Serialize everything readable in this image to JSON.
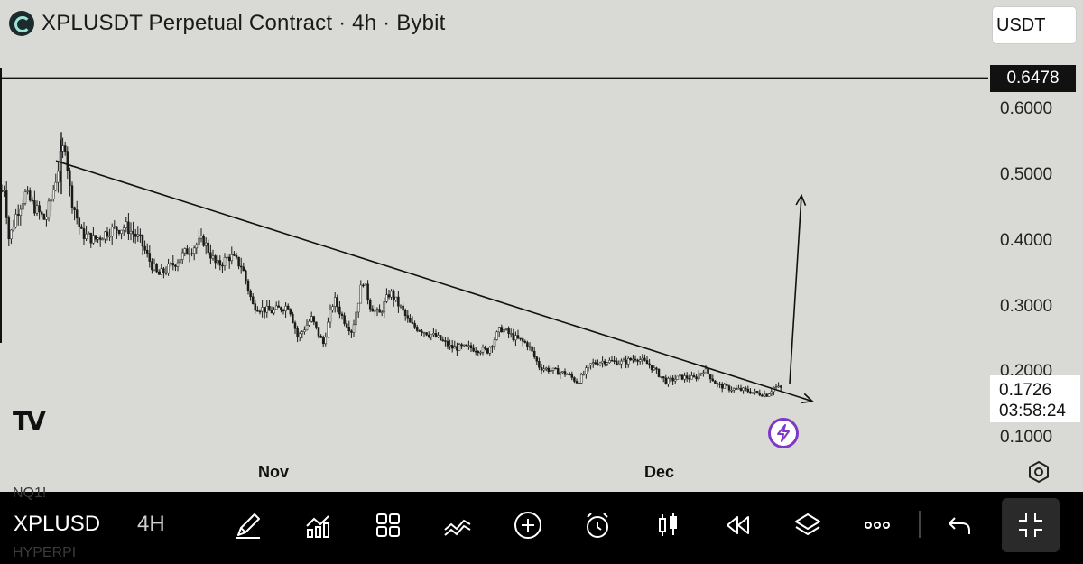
{
  "header": {
    "title": "XPLUSDT Perpetual Contract · 4h · Bybit",
    "currency": "USDT"
  },
  "price_axis": {
    "labels": [
      "0.6000",
      "0.5000",
      "0.4000",
      "0.3000",
      "0.2000",
      "0.1000"
    ],
    "current_level": "0.6478",
    "live_price": "0.1726",
    "countdown": "03:58:24"
  },
  "time_axis": {
    "labels": [
      "Nov",
      "Dec"
    ]
  },
  "watermark": {
    "logo_text": "TV"
  },
  "toolbar": {
    "symbol": "XPLUSD",
    "interval": "4H",
    "ghost_top": "NQ1!",
    "ghost_bottom": "HYPERPI",
    "icons": [
      "draw-icon",
      "indicators-icon",
      "layouts-icon",
      "compare-icon",
      "add-icon",
      "alert-icon",
      "candles-icon",
      "replay-icon",
      "layers-icon",
      "more-icon",
      "undo-icon",
      "fullscreen-icon"
    ]
  },
  "chart_data": {
    "type": "candlestick",
    "symbol": "XPLUSDT",
    "interval": "4h",
    "exchange": "Bybit",
    "x_labels": [
      "Nov",
      "Dec"
    ],
    "ylim": [
      0.07,
      0.68
    ],
    "y_ticks": [
      0.1,
      0.2,
      0.3,
      0.4,
      0.5,
      0.6
    ],
    "horizontal_line": 0.6478,
    "last_price": 0.1726,
    "close_path": [
      {
        "x": 0,
        "y": 0.46
      },
      {
        "x": 4,
        "y": 0.49
      },
      {
        "x": 10,
        "y": 0.4
      },
      {
        "x": 18,
        "y": 0.44
      },
      {
        "x": 28,
        "y": 0.47
      },
      {
        "x": 38,
        "y": 0.45
      },
      {
        "x": 50,
        "y": 0.43
      },
      {
        "x": 58,
        "y": 0.47
      },
      {
        "x": 66,
        "y": 0.52
      },
      {
        "x": 72,
        "y": 0.55
      },
      {
        "x": 78,
        "y": 0.47
      },
      {
        "x": 90,
        "y": 0.41
      },
      {
        "x": 105,
        "y": 0.4
      },
      {
        "x": 122,
        "y": 0.415
      },
      {
        "x": 140,
        "y": 0.42
      },
      {
        "x": 155,
        "y": 0.4
      },
      {
        "x": 165,
        "y": 0.37
      },
      {
        "x": 175,
        "y": 0.345
      },
      {
        "x": 190,
        "y": 0.36
      },
      {
        "x": 205,
        "y": 0.38
      },
      {
        "x": 225,
        "y": 0.4
      },
      {
        "x": 240,
        "y": 0.36
      },
      {
        "x": 255,
        "y": 0.375
      },
      {
        "x": 268,
        "y": 0.36
      },
      {
        "x": 280,
        "y": 0.3
      },
      {
        "x": 300,
        "y": 0.29
      },
      {
        "x": 320,
        "y": 0.3
      },
      {
        "x": 330,
        "y": 0.25
      },
      {
        "x": 345,
        "y": 0.28
      },
      {
        "x": 358,
        "y": 0.24
      },
      {
        "x": 370,
        "y": 0.31
      },
      {
        "x": 380,
        "y": 0.28
      },
      {
        "x": 390,
        "y": 0.26
      },
      {
        "x": 402,
        "y": 0.34
      },
      {
        "x": 410,
        "y": 0.3
      },
      {
        "x": 420,
        "y": 0.285
      },
      {
        "x": 432,
        "y": 0.32
      },
      {
        "x": 442,
        "y": 0.3
      },
      {
        "x": 455,
        "y": 0.27
      },
      {
        "x": 470,
        "y": 0.26
      },
      {
        "x": 485,
        "y": 0.25
      },
      {
        "x": 500,
        "y": 0.235
      },
      {
        "x": 520,
        "y": 0.235
      },
      {
        "x": 540,
        "y": 0.23
      },
      {
        "x": 555,
        "y": 0.265
      },
      {
        "x": 570,
        "y": 0.25
      },
      {
        "x": 585,
        "y": 0.24
      },
      {
        "x": 598,
        "y": 0.205
      },
      {
        "x": 612,
        "y": 0.2
      },
      {
        "x": 628,
        "y": 0.195
      },
      {
        "x": 640,
        "y": 0.182
      },
      {
        "x": 655,
        "y": 0.21
      },
      {
        "x": 670,
        "y": 0.215
      },
      {
        "x": 690,
        "y": 0.212
      },
      {
        "x": 705,
        "y": 0.22
      },
      {
        "x": 720,
        "y": 0.208
      },
      {
        "x": 738,
        "y": 0.183
      },
      {
        "x": 755,
        "y": 0.19
      },
      {
        "x": 770,
        "y": 0.188
      },
      {
        "x": 780,
        "y": 0.202
      },
      {
        "x": 795,
        "y": 0.178
      },
      {
        "x": 810,
        "y": 0.172
      },
      {
        "x": 825,
        "y": 0.17
      },
      {
        "x": 840,
        "y": 0.165
      },
      {
        "x": 850,
        "y": 0.163
      },
      {
        "x": 858,
        "y": 0.175
      },
      {
        "x": 866,
        "y": 0.1726
      }
    ],
    "trendline": {
      "from": {
        "x": 62,
        "y": 0.521
      },
      "to": {
        "x": 900,
        "y": 0.153
      }
    },
    "projection_arrow": {
      "from": {
        "x": 875,
        "y": 0.18
      },
      "to": {
        "x": 888,
        "y": 0.468
      }
    }
  }
}
